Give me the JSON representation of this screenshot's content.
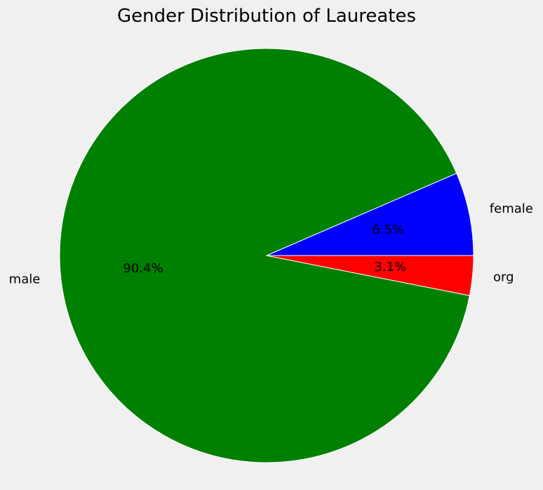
{
  "chart_data": {
    "type": "pie",
    "title": "Gender Distribution of Laureates",
    "slices": [
      {
        "label": "female",
        "value": 6.5,
        "pct_label": "6.5%",
        "color": "#0000ff"
      },
      {
        "label": "male",
        "value": 90.4,
        "pct_label": "90.4%",
        "color": "#008000"
      },
      {
        "label": "org",
        "value": 3.1,
        "pct_label": "3.1%",
        "color": "#ff0000"
      }
    ],
    "start_angle_deg": 0,
    "direction": "counterclockwise",
    "wedge_edge_color": "#ffffff"
  }
}
